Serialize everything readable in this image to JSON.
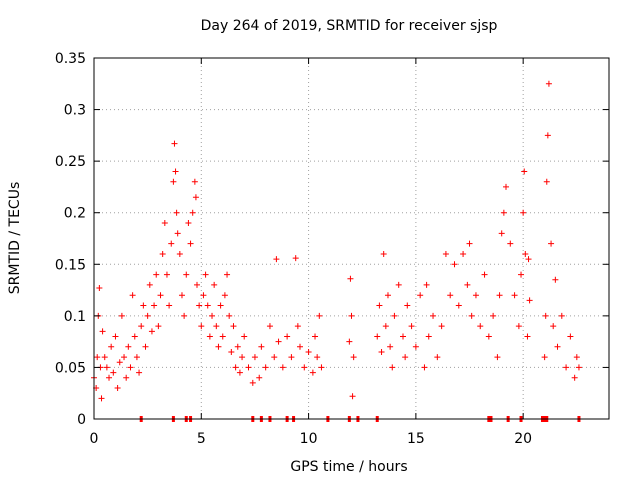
{
  "chart_data": {
    "type": "scatter",
    "title": "Day 264 of 2019, SRMTID for receiver sjsp",
    "xlabel": "GPS time / hours",
    "ylabel": "SRMTID / TECUs",
    "xlim": [
      0,
      24
    ],
    "ylim": [
      0,
      0.35
    ],
    "grid": true,
    "marker": "+",
    "color": "#ff0000",
    "x_ticks": [
      0,
      5,
      10,
      15,
      20
    ],
    "x_tick_labels": [
      "0",
      "5",
      "10",
      "15",
      "20"
    ],
    "y_ticks": [
      0,
      0.05,
      0.1,
      0.15,
      0.2,
      0.25,
      0.3,
      0.35
    ],
    "y_tick_labels": [
      "0",
      "0.05",
      "0.1",
      "0.15",
      "0.2",
      "0.25",
      "0.3",
      "0.35"
    ],
    "series": [
      {
        "name": "SRMTID",
        "points": [
          [
            0.0,
            0.04
          ],
          [
            0.1,
            0.03
          ],
          [
            0.15,
            0.06
          ],
          [
            0.2,
            0.1
          ],
          [
            0.25,
            0.127
          ],
          [
            0.3,
            0.05
          ],
          [
            0.35,
            0.02
          ],
          [
            0.4,
            0.085
          ],
          [
            0.5,
            0.06
          ],
          [
            0.6,
            0.05
          ],
          [
            0.7,
            0.04
          ],
          [
            0.8,
            0.07
          ],
          [
            0.9,
            0.045
          ],
          [
            1.0,
            0.08
          ],
          [
            1.1,
            0.03
          ],
          [
            1.2,
            0.055
          ],
          [
            1.3,
            0.1
          ],
          [
            1.4,
            0.06
          ],
          [
            1.5,
            0.04
          ],
          [
            1.6,
            0.07
          ],
          [
            1.7,
            0.05
          ],
          [
            1.8,
            0.12
          ],
          [
            1.9,
            0.08
          ],
          [
            2.0,
            0.06
          ],
          [
            2.1,
            0.045
          ],
          [
            2.2,
            0.09
          ],
          [
            2.3,
            0.11
          ],
          [
            2.4,
            0.07
          ],
          [
            2.5,
            0.1
          ],
          [
            2.6,
            0.13
          ],
          [
            2.7,
            0.085
          ],
          [
            2.8,
            0.11
          ],
          [
            2.9,
            0.14
          ],
          [
            3.0,
            0.09
          ],
          [
            3.1,
            0.12
          ],
          [
            3.2,
            0.16
          ],
          [
            3.3,
            0.19
          ],
          [
            3.4,
            0.14
          ],
          [
            3.5,
            0.11
          ],
          [
            3.6,
            0.17
          ],
          [
            3.7,
            0.23
          ],
          [
            3.75,
            0.267
          ],
          [
            3.8,
            0.24
          ],
          [
            3.85,
            0.2
          ],
          [
            3.9,
            0.18
          ],
          [
            4.0,
            0.16
          ],
          [
            4.1,
            0.12
          ],
          [
            4.2,
            0.1
          ],
          [
            4.3,
            0.14
          ],
          [
            4.4,
            0.19
          ],
          [
            4.5,
            0.17
          ],
          [
            4.6,
            0.2
          ],
          [
            4.7,
            0.23
          ],
          [
            4.75,
            0.215
          ],
          [
            4.8,
            0.13
          ],
          [
            4.9,
            0.11
          ],
          [
            5.0,
            0.09
          ],
          [
            5.1,
            0.12
          ],
          [
            5.2,
            0.14
          ],
          [
            5.3,
            0.11
          ],
          [
            5.4,
            0.08
          ],
          [
            5.5,
            0.1
          ],
          [
            5.6,
            0.13
          ],
          [
            5.7,
            0.09
          ],
          [
            5.8,
            0.07
          ],
          [
            5.9,
            0.11
          ],
          [
            6.0,
            0.08
          ],
          [
            6.1,
            0.12
          ],
          [
            6.2,
            0.14
          ],
          [
            6.3,
            0.1
          ],
          [
            6.4,
            0.065
          ],
          [
            6.5,
            0.09
          ],
          [
            6.6,
            0.05
          ],
          [
            6.7,
            0.07
          ],
          [
            6.8,
            0.045
          ],
          [
            6.9,
            0.06
          ],
          [
            7.0,
            0.08
          ],
          [
            7.2,
            0.05
          ],
          [
            7.4,
            0.035
          ],
          [
            7.5,
            0.06
          ],
          [
            7.7,
            0.04
          ],
          [
            7.8,
            0.07
          ],
          [
            8.0,
            0.05
          ],
          [
            8.2,
            0.09
          ],
          [
            8.4,
            0.06
          ],
          [
            8.5,
            0.155
          ],
          [
            8.6,
            0.075
          ],
          [
            8.8,
            0.05
          ],
          [
            9.0,
            0.08
          ],
          [
            9.2,
            0.06
          ],
          [
            9.4,
            0.156
          ],
          [
            9.5,
            0.09
          ],
          [
            9.6,
            0.07
          ],
          [
            9.8,
            0.05
          ],
          [
            10.0,
            0.065
          ],
          [
            10.2,
            0.045
          ],
          [
            10.3,
            0.08
          ],
          [
            10.4,
            0.06
          ],
          [
            10.5,
            0.1
          ],
          [
            10.6,
            0.05
          ],
          [
            11.9,
            0.075
          ],
          [
            11.95,
            0.136
          ],
          [
            12.0,
            0.1
          ],
          [
            12.05,
            0.022
          ],
          [
            12.1,
            0.06
          ],
          [
            13.2,
            0.08
          ],
          [
            13.3,
            0.11
          ],
          [
            13.4,
            0.065
          ],
          [
            13.5,
            0.16
          ],
          [
            13.6,
            0.09
          ],
          [
            13.7,
            0.12
          ],
          [
            13.8,
            0.07
          ],
          [
            13.9,
            0.05
          ],
          [
            14.0,
            0.1
          ],
          [
            14.2,
            0.13
          ],
          [
            14.4,
            0.08
          ],
          [
            14.5,
            0.06
          ],
          [
            14.6,
            0.11
          ],
          [
            14.8,
            0.09
          ],
          [
            15.0,
            0.07
          ],
          [
            15.2,
            0.12
          ],
          [
            15.4,
            0.05
          ],
          [
            15.5,
            0.13
          ],
          [
            15.6,
            0.08
          ],
          [
            15.8,
            0.1
          ],
          [
            16.0,
            0.06
          ],
          [
            16.2,
            0.09
          ],
          [
            16.4,
            0.16
          ],
          [
            16.6,
            0.12
          ],
          [
            16.8,
            0.15
          ],
          [
            17.0,
            0.11
          ],
          [
            17.2,
            0.16
          ],
          [
            17.4,
            0.13
          ],
          [
            17.5,
            0.17
          ],
          [
            17.6,
            0.1
          ],
          [
            17.8,
            0.12
          ],
          [
            18.0,
            0.09
          ],
          [
            18.2,
            0.14
          ],
          [
            18.4,
            0.08
          ],
          [
            18.6,
            0.1
          ],
          [
            18.8,
            0.06
          ],
          [
            18.9,
            0.12
          ],
          [
            19.0,
            0.18
          ],
          [
            19.1,
            0.2
          ],
          [
            19.2,
            0.225
          ],
          [
            19.4,
            0.17
          ],
          [
            19.6,
            0.12
          ],
          [
            19.8,
            0.09
          ],
          [
            19.9,
            0.14
          ],
          [
            20.0,
            0.2
          ],
          [
            20.05,
            0.24
          ],
          [
            20.1,
            0.16
          ],
          [
            20.2,
            0.08
          ],
          [
            20.25,
            0.155
          ],
          [
            20.3,
            0.115
          ],
          [
            21.0,
            0.06
          ],
          [
            21.05,
            0.1
          ],
          [
            21.1,
            0.23
          ],
          [
            21.15,
            0.275
          ],
          [
            21.2,
            0.325
          ],
          [
            21.3,
            0.17
          ],
          [
            21.4,
            0.09
          ],
          [
            21.5,
            0.135
          ],
          [
            21.6,
            0.07
          ],
          [
            21.8,
            0.1
          ],
          [
            22.0,
            0.05
          ],
          [
            22.2,
            0.08
          ],
          [
            22.4,
            0.04
          ],
          [
            22.5,
            0.06
          ],
          [
            22.6,
            0.05
          ]
        ]
      }
    ],
    "zero_markers_x": [
      2.2,
      3.7,
      4.3,
      4.5,
      7.4,
      7.8,
      8.2,
      9.0,
      9.3,
      10.9,
      11.9,
      12.3,
      13.2,
      18.4,
      18.5,
      19.3,
      19.9,
      20.9,
      21.0,
      21.1,
      22.6
    ]
  }
}
